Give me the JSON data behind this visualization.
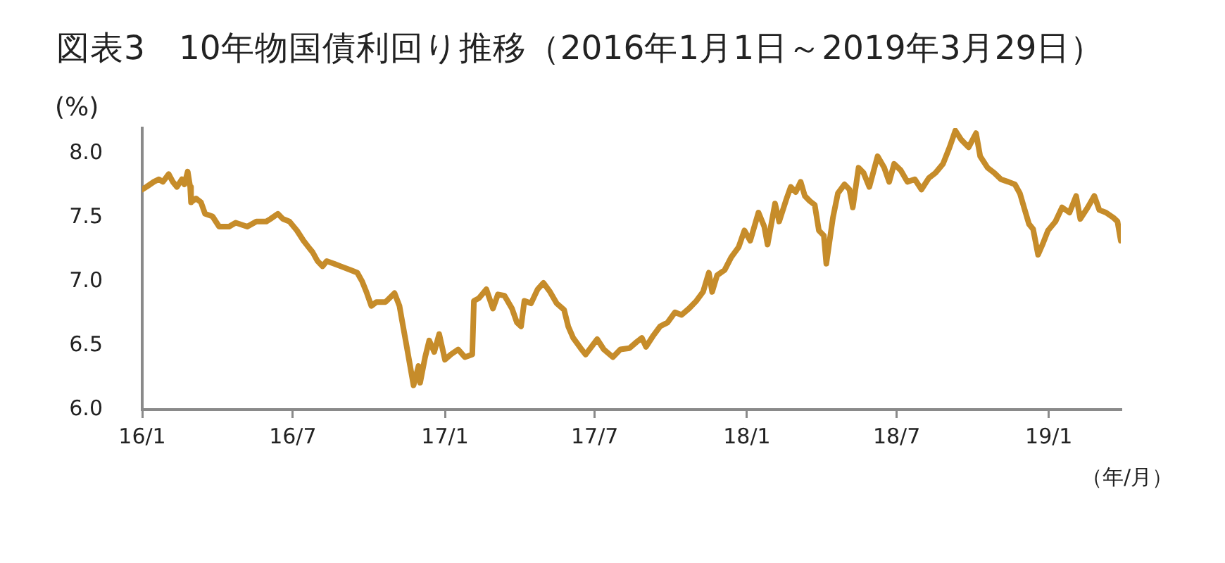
{
  "chart_data": {
    "type": "line",
    "title": "図表3　10年物国債利回り推移（2016年1月1日～2019年3月29日）",
    "xlabel": "（年/月）",
    "ylabel": "(%)",
    "x": [
      "2016-01-01",
      "2016-01-06",
      "2016-01-15",
      "2016-01-21",
      "2016-01-26",
      "2016-02-02",
      "2016-02-07",
      "2016-02-12",
      "2016-02-18",
      "2016-02-21",
      "2016-02-25",
      "2016-02-28",
      "2016-02-29",
      "2016-03-06",
      "2016-03-12",
      "2016-03-17",
      "2016-03-26",
      "2016-04-03",
      "2016-04-15",
      "2016-04-23",
      "2016-05-07",
      "2016-05-18",
      "2016-05-30",
      "2016-06-04",
      "2016-06-13",
      "2016-06-19",
      "2016-06-27",
      "2016-07-06",
      "2016-07-14",
      "2016-07-20",
      "2016-07-25",
      "2016-07-31",
      "2016-08-06",
      "2016-08-11",
      "2016-08-20",
      "2016-08-28",
      "2016-09-09",
      "2016-09-17",
      "2016-09-23",
      "2016-09-28",
      "2016-10-04",
      "2016-10-10",
      "2016-10-21",
      "2016-11-01",
      "2016-11-07",
      "2016-11-10",
      "2016-11-15",
      "2016-11-21",
      "2016-11-24",
      "2016-11-30",
      "2016-12-02",
      "2016-12-08",
      "2016-12-13",
      "2016-12-19",
      "2016-12-25",
      "2017-01-01",
      "2017-01-08",
      "2017-01-17",
      "2017-01-25",
      "2017-02-03",
      "2017-02-05",
      "2017-02-11",
      "2017-02-20",
      "2017-02-28",
      "2017-03-06",
      "2017-03-14",
      "2017-03-23",
      "2017-03-29",
      "2017-04-03",
      "2017-04-07",
      "2017-04-15",
      "2017-04-23",
      "2017-04-30",
      "2017-05-08",
      "2017-05-16",
      "2017-05-25",
      "2017-05-30",
      "2017-06-05",
      "2017-06-14",
      "2017-06-20",
      "2017-07-04",
      "2017-07-12",
      "2017-07-23",
      "2017-08-01",
      "2017-08-12",
      "2017-08-21",
      "2017-08-27",
      "2017-09-01",
      "2017-09-10",
      "2017-09-18",
      "2017-09-27",
      "2017-10-06",
      "2017-10-14",
      "2017-10-23",
      "2017-11-01",
      "2017-11-09",
      "2017-11-16",
      "2017-11-20",
      "2017-11-26",
      "2017-12-05",
      "2017-12-13",
      "2017-12-22",
      "2017-12-29",
      "2018-01-05",
      "2018-01-15",
      "2018-01-22",
      "2018-01-26",
      "2018-02-04",
      "2018-02-09",
      "2018-02-18",
      "2018-02-23",
      "2018-03-01",
      "2018-03-07",
      "2018-03-12",
      "2018-03-18",
      "2018-03-24",
      "2018-03-29",
      "2018-04-04",
      "2018-04-07",
      "2018-04-11",
      "2018-04-15",
      "2018-04-21",
      "2018-04-29",
      "2018-05-05",
      "2018-05-09",
      "2018-05-16",
      "2018-05-22",
      "2018-05-29",
      "2018-06-08",
      "2018-06-16",
      "2018-06-22",
      "2018-06-28",
      "2018-07-06",
      "2018-07-14",
      "2018-07-23",
      "2018-07-31",
      "2018-08-09",
      "2018-08-17",
      "2018-08-26",
      "2018-09-03",
      "2018-09-10",
      "2018-09-17",
      "2018-09-26",
      "2018-10-05",
      "2018-10-10",
      "2018-10-19",
      "2018-10-27",
      "2018-11-04",
      "2018-11-13",
      "2018-11-21",
      "2018-11-27",
      "2018-12-02",
      "2018-12-08",
      "2018-12-13",
      "2018-12-19",
      "2018-12-25",
      "2018-12-31",
      "2019-01-09",
      "2019-01-17",
      "2019-01-26",
      "2019-02-03",
      "2019-02-08",
      "2019-02-17",
      "2019-02-25",
      "2019-03-03",
      "2019-03-11",
      "2019-03-20",
      "2019-03-25",
      "2019-03-29"
    ],
    "values": [
      7.72,
      7.74,
      7.78,
      7.8,
      7.78,
      7.84,
      7.78,
      7.74,
      7.8,
      7.76,
      7.86,
      7.74,
      7.62,
      7.65,
      7.62,
      7.53,
      7.51,
      7.43,
      7.43,
      7.46,
      7.43,
      7.47,
      7.47,
      7.49,
      7.53,
      7.49,
      7.47,
      7.4,
      7.32,
      7.27,
      7.23,
      7.16,
      7.12,
      7.16,
      7.14,
      7.12,
      7.09,
      7.07,
      7.0,
      6.92,
      6.81,
      6.84,
      6.84,
      6.91,
      6.81,
      6.7,
      6.52,
      6.3,
      6.19,
      6.34,
      6.21,
      6.41,
      6.54,
      6.45,
      6.59,
      6.39,
      6.43,
      6.47,
      6.41,
      6.43,
      6.85,
      6.87,
      6.94,
      6.79,
      6.9,
      6.89,
      6.79,
      6.68,
      6.65,
      6.85,
      6.83,
      6.94,
      6.99,
      6.92,
      6.83,
      6.78,
      6.65,
      6.56,
      6.48,
      6.43,
      6.55,
      6.47,
      6.41,
      6.47,
      6.48,
      6.53,
      6.56,
      6.49,
      6.58,
      6.65,
      6.68,
      6.76,
      6.74,
      6.79,
      6.85,
      6.92,
      7.07,
      6.92,
      7.05,
      7.09,
      7.19,
      7.27,
      7.4,
      7.32,
      7.54,
      7.43,
      7.29,
      7.61,
      7.47,
      7.65,
      7.74,
      7.7,
      7.78,
      7.67,
      7.63,
      7.6,
      7.4,
      7.36,
      7.14,
      7.32,
      7.5,
      7.69,
      7.76,
      7.72,
      7.58,
      7.89,
      7.85,
      7.74,
      7.98,
      7.89,
      7.78,
      7.92,
      7.87,
      7.78,
      7.8,
      7.72,
      7.81,
      7.85,
      7.92,
      8.05,
      8.18,
      8.11,
      8.05,
      8.16,
      7.98,
      7.89,
      7.85,
      7.8,
      7.78,
      7.76,
      7.69,
      7.58,
      7.45,
      7.41,
      7.21,
      7.3,
      7.4,
      7.47,
      7.58,
      7.54,
      7.67,
      7.49,
      7.58,
      7.67,
      7.56,
      7.54,
      7.5,
      7.47,
      7.32
    ],
    "color": "#c68c2a",
    "xlim": [
      "2016-01-01",
      "2019-03-29"
    ],
    "xticks": [
      {
        "value": "2016-01-01",
        "label": "16/1"
      },
      {
        "value": "2016-07-01",
        "label": "16/7"
      },
      {
        "value": "2017-01-01",
        "label": "17/1"
      },
      {
        "value": "2017-07-01",
        "label": "17/7"
      },
      {
        "value": "2018-01-01",
        "label": "18/1"
      },
      {
        "value": "2018-07-01",
        "label": "18/7"
      },
      {
        "value": "2019-01-01",
        "label": "19/1"
      }
    ],
    "ylim": [
      6,
      8.2
    ],
    "yticks": [
      {
        "value": 6,
        "label": "6.0"
      },
      {
        "value": 6.5,
        "label": "6.5"
      },
      {
        "value": 7,
        "label": "7.0"
      },
      {
        "value": 7.5,
        "label": "7.5"
      },
      {
        "value": 8,
        "label": "8.0"
      }
    ],
    "grid": false,
    "legend": false,
    "marker": "none",
    "line_style": "solid"
  }
}
